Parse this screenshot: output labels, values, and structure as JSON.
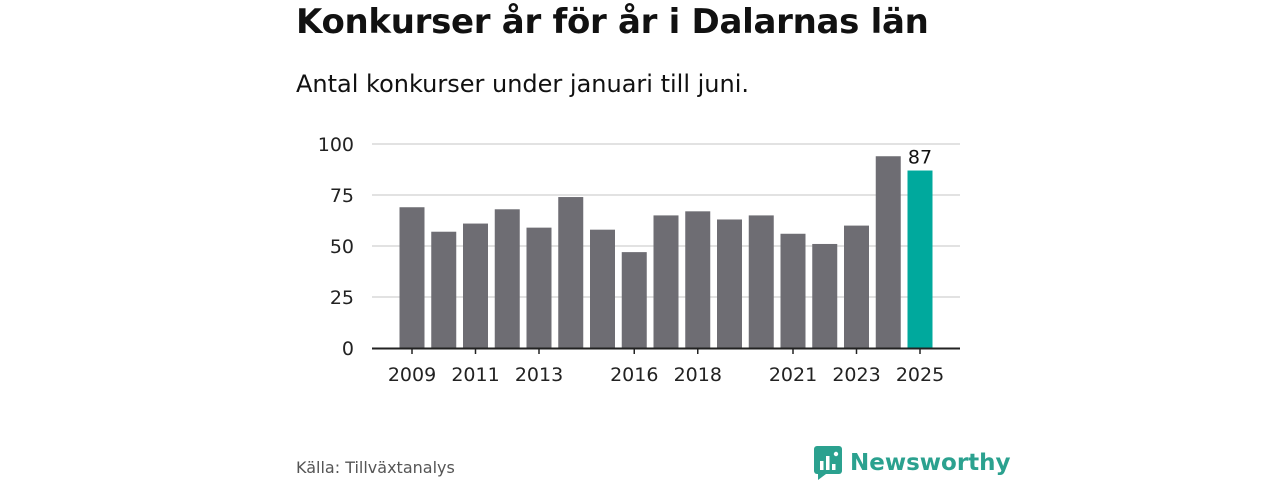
{
  "header": {
    "title": "Konkurser år för år i Dalarnas län",
    "subtitle": "Antal konkurser under januari till juni."
  },
  "footer": {
    "source": "Källa: Tillväxtanalys",
    "logo_text": "Newsworthy"
  },
  "colors": {
    "bar": "#6e6d73",
    "highlight": "#00a99d",
    "grid": "#d9d9d9",
    "axis": "#222222",
    "logo": "#2ba18f"
  },
  "chart_data": {
    "type": "bar",
    "categories": [
      "2009",
      "2010",
      "2011",
      "2012",
      "2013",
      "2014",
      "2015",
      "2016",
      "2017",
      "2018",
      "2019",
      "2020",
      "2021",
      "2022",
      "2023",
      "2024",
      "2025"
    ],
    "values": [
      69,
      57,
      61,
      68,
      59,
      74,
      58,
      47,
      65,
      67,
      63,
      65,
      56,
      51,
      60,
      94,
      87
    ],
    "tick_labels_x": [
      "2009",
      "2011",
      "2013",
      "2016",
      "2018",
      "2021",
      "2023",
      "2025"
    ],
    "tick_labels_y": [
      "0",
      "25",
      "50",
      "75",
      "100"
    ],
    "ylim": [
      0,
      100
    ],
    "highlight_category": "2025",
    "data_labels": [
      {
        "category": "2025",
        "text": "87"
      }
    ],
    "grid": true,
    "xlabel": "",
    "ylabel": ""
  }
}
